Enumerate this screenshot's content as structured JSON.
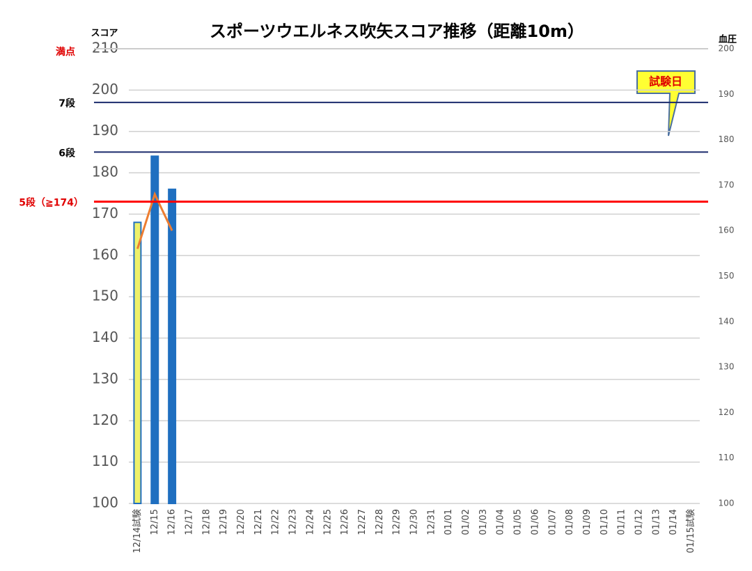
{
  "chart_data": {
    "type": "bar_line",
    "title": "スポーツウエルネス吹矢スコア推移（距離10m）",
    "y_label": "スコア",
    "y2_label": "血圧",
    "annotation": "試験日",
    "categories": [
      "12/14試験",
      "12/15",
      "12/16",
      "12/17",
      "12/18",
      "12/19",
      "12/20",
      "12/21",
      "12/22",
      "12/23",
      "12/24",
      "12/25",
      "12/26",
      "12/27",
      "12/28",
      "12/29",
      "12/30",
      "12/31",
      "01/01",
      "01/02",
      "01/03",
      "01/04",
      "01/05",
      "01/06",
      "01/07",
      "01/08",
      "01/09",
      "01/10",
      "01/11",
      "01/12",
      "01/13",
      "01/14",
      "01/15試験"
    ],
    "series": [
      {
        "kind": "bar",
        "color": "#1f6fc0",
        "colors": [
          "#eef06a",
          "#1f6fc0",
          "#1f6fc0",
          null,
          null,
          null,
          null,
          null,
          null,
          null,
          null,
          null,
          null,
          null,
          null,
          null,
          null,
          null,
          null,
          null,
          null,
          null,
          null,
          null,
          null,
          null,
          null,
          null,
          null,
          null,
          null,
          null,
          null
        ],
        "values": [
          168,
          184,
          176,
          null,
          null,
          null,
          null,
          null,
          null,
          null,
          null,
          null,
          null,
          null,
          null,
          null,
          null,
          null,
          null,
          null,
          null,
          null,
          null,
          null,
          null,
          null,
          null,
          null,
          null,
          null,
          null,
          null,
          null
        ]
      },
      {
        "kind": "line",
        "axis": "y2",
        "color": "#ed7d31",
        "values": [
          156,
          168,
          160,
          null,
          null,
          null,
          null,
          null,
          null,
          null,
          null,
          null,
          null,
          null,
          null,
          null,
          null,
          null,
          null,
          null,
          null,
          null,
          null,
          null,
          null,
          null,
          null,
          null,
          null,
          null,
          null,
          null,
          null
        ]
      }
    ],
    "ylim": [
      100,
      210
    ],
    "yticks": [
      100,
      110,
      120,
      130,
      140,
      150,
      160,
      170,
      180,
      190,
      200,
      210
    ],
    "y2lim": [
      100,
      200
    ],
    "y2ticks": [
      100,
      110,
      120,
      130,
      140,
      150,
      160,
      170,
      180,
      190,
      200
    ],
    "grid": true,
    "reference_lines": [
      {
        "label": "満点",
        "value": 210,
        "label_color": "#e00000",
        "line_color": "#cccccc"
      },
      {
        "label": "7段",
        "value": 197,
        "label_color": "#000000",
        "line_color": "#1a2a6c"
      },
      {
        "label": "6段",
        "value": 185,
        "label_color": "#000000",
        "line_color": "#1a2a6c"
      },
      {
        "label": "5段（≧174）",
        "value": 173,
        "label_color": "#e00000",
        "line_color": "#ff0000"
      }
    ]
  }
}
